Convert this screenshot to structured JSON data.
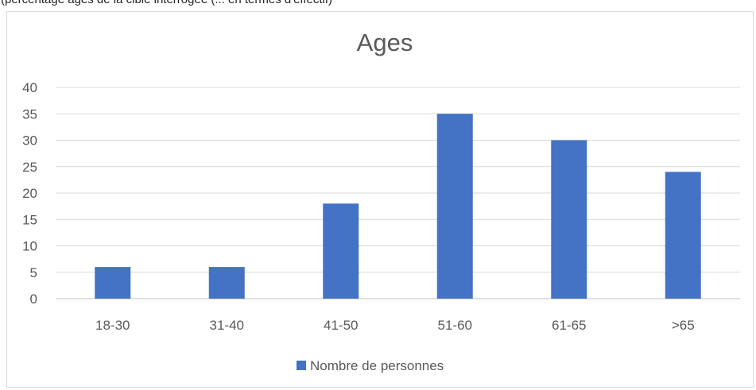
{
  "caption_fragment": "(percentage ages de la cible interrogée (... en termes d'effectif)",
  "chart_data": {
    "type": "bar",
    "title": "Ages",
    "categories": [
      "18-30",
      "31-40",
      "41-50",
      "51-60",
      "61-65",
      ">65"
    ],
    "series": [
      {
        "name": "Nombre de personnes",
        "values": [
          6,
          6,
          18,
          35,
          30,
          24
        ],
        "color": "#4472c4"
      }
    ],
    "ylim": [
      0,
      40
    ],
    "yticks": [
      "0",
      "5",
      "10",
      "15",
      "20",
      "25",
      "30",
      "35",
      "40"
    ],
    "grid": true,
    "legend_position": "bottom"
  }
}
